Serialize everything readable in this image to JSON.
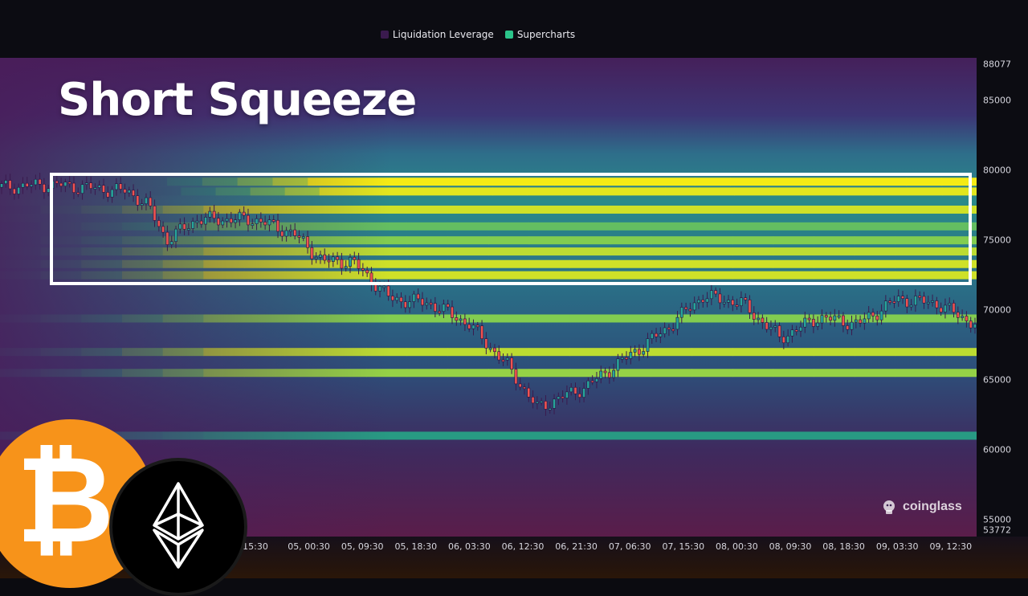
{
  "headline": "Short Squeeze",
  "legend": [
    {
      "label": "Liquidation Leverage",
      "color": "#3a1a4e"
    },
    {
      "label": "Supercharts",
      "color": "#2bc48a"
    }
  ],
  "watermark": "coinglass",
  "badges": {
    "btc_symbol": "₿"
  },
  "chart_data": {
    "type": "heatmap",
    "title": "",
    "legend": [
      "Liquidation Leverage",
      "Supercharts"
    ],
    "x_ticks": [
      "15:30",
      "05, 00:30",
      "05, 09:30",
      "05, 18:30",
      "06, 03:30",
      "06, 12:30",
      "06, 21:30",
      "07, 06:30",
      "07, 15:30",
      "08, 00:30",
      "08, 09:30",
      "08, 18:30",
      "09, 03:30",
      "09, 12:30"
    ],
    "y_ticks": [
      88077,
      85000,
      80000,
      75000,
      70000,
      65000,
      60000,
      55000,
      53772
    ],
    "ylim": [
      53772,
      88077
    ],
    "price_series": {
      "name": "Price",
      "x": [
        0,
        0.05,
        0.1,
        0.13,
        0.15,
        0.17,
        0.2,
        0.26,
        0.3,
        0.33,
        0.36,
        0.4,
        0.44,
        0.48,
        0.52,
        0.55,
        0.6,
        0.64,
        0.68,
        0.72,
        0.76,
        0.8,
        0.84,
        0.88,
        0.92,
        0.96,
        1.0
      ],
      "y": [
        78800,
        79000,
        78700,
        78500,
        77500,
        75000,
        76500,
        76500,
        75500,
        73500,
        73500,
        70800,
        70500,
        69000,
        66000,
        63000,
        64500,
        66500,
        68500,
        71000,
        70500,
        68000,
        69500,
        69000,
        70800,
        70500,
        69000
      ]
    },
    "highlight_range": {
      "label": "Short Squeeze",
      "y_from": 72000,
      "y_to": 79800
    },
    "liquidation_bands": [
      {
        "y": 79200,
        "intensity": 1.0
      },
      {
        "y": 78500,
        "intensity": 0.95
      },
      {
        "y": 77200,
        "intensity": 0.9
      },
      {
        "y": 76000,
        "intensity": 0.6
      },
      {
        "y": 75000,
        "intensity": 0.7
      },
      {
        "y": 74200,
        "intensity": 0.85
      },
      {
        "y": 73300,
        "intensity": 0.9
      },
      {
        "y": 72500,
        "intensity": 0.9
      },
      {
        "y": 69400,
        "intensity": 0.7
      },
      {
        "y": 67000,
        "intensity": 0.85
      },
      {
        "y": 65500,
        "intensity": 0.75
      },
      {
        "y": 61000,
        "intensity": 0.35
      }
    ]
  }
}
